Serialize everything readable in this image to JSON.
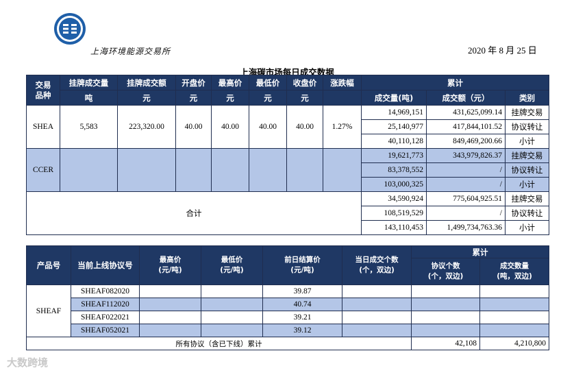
{
  "header": {
    "exchange_name": "上海环境能源交易所",
    "date": "2020 年 8 月 25 日",
    "title": "上海碳市场每日成交数据"
  },
  "daily": {
    "headers": {
      "product": "交易\n品种",
      "listed_volume": "挂牌成交量",
      "listed_amount": "挂牌成交额",
      "open": "开盘价",
      "high": "最高价",
      "low": "最低价",
      "close": "收盘价",
      "change": "涨跌幅",
      "cumulative": "累计",
      "unit_ton": "吨",
      "unit_yuan": "元",
      "cum_volume": "成交量(吨)",
      "cum_amount": "成交额（元）",
      "category": "类别"
    },
    "shea": {
      "name": "SHEA",
      "listed_volume": "5,583",
      "listed_amount": "223,320.00",
      "open": "40.00",
      "high": "40.00",
      "low": "40.00",
      "close": "40.00",
      "change": "1.27%",
      "rows": [
        {
          "volume": "14,969,151",
          "amount": "431,625,099.14",
          "category": "挂牌交易"
        },
        {
          "volume": "25,140,977",
          "amount": "417,844,101.52",
          "category": "协议转让"
        },
        {
          "volume": "40,110,128",
          "amount": "849,469,200.66",
          "category": "小计"
        }
      ]
    },
    "ccer": {
      "name": "CCER",
      "rows": [
        {
          "volume": "19,621,773",
          "amount": "343,979,826.37",
          "category": "挂牌交易"
        },
        {
          "volume": "83,378,552",
          "amount": "/",
          "category": "协议转让"
        },
        {
          "volume": "103,000,325",
          "amount": "/",
          "category": "小计"
        }
      ]
    },
    "total": {
      "name": "合计",
      "rows": [
        {
          "volume": "34,590,924",
          "amount": "775,604,925.51",
          "category": "挂牌交易"
        },
        {
          "volume": "108,519,529",
          "amount": "/",
          "category": "协议转让"
        },
        {
          "volume": "143,110,453",
          "amount": "1,499,734,763.36",
          "category": "小计"
        }
      ]
    }
  },
  "forward": {
    "headers": {
      "product": "产品号",
      "contract": "当前上线协议号",
      "high": "最高价\n(元/吨)",
      "low": "最低价\n(元/吨)",
      "settle": "前日结算价\n(元/吨)",
      "day_count": "当日成交个数\n(个，双边)",
      "cumulative": "累计",
      "cum_count": "协议个数\n(个，双边)",
      "cum_qty": "成交数量\n(吨，双边)"
    },
    "product": "SHEAF",
    "rows": [
      {
        "contract": "SHEAF082020",
        "high": "",
        "low": "",
        "settle": "39.87",
        "day_count": "",
        "cum_count": "",
        "cum_qty": ""
      },
      {
        "contract": "SHEAF112020",
        "high": "",
        "low": "",
        "settle": "40.74",
        "day_count": "",
        "cum_count": "",
        "cum_qty": ""
      },
      {
        "contract": "SHEAF022021",
        "high": "",
        "low": "",
        "settle": "39.21",
        "day_count": "",
        "cum_count": "",
        "cum_qty": ""
      },
      {
        "contract": "SHEAF052021",
        "high": "",
        "low": "",
        "settle": "39.12",
        "day_count": "",
        "cum_count": "",
        "cum_qty": ""
      }
    ],
    "total_label": "所有协议（含已下线）累计",
    "total_count": "42,108",
    "total_qty": "4,210,800"
  },
  "watermark": "大数跨境"
}
